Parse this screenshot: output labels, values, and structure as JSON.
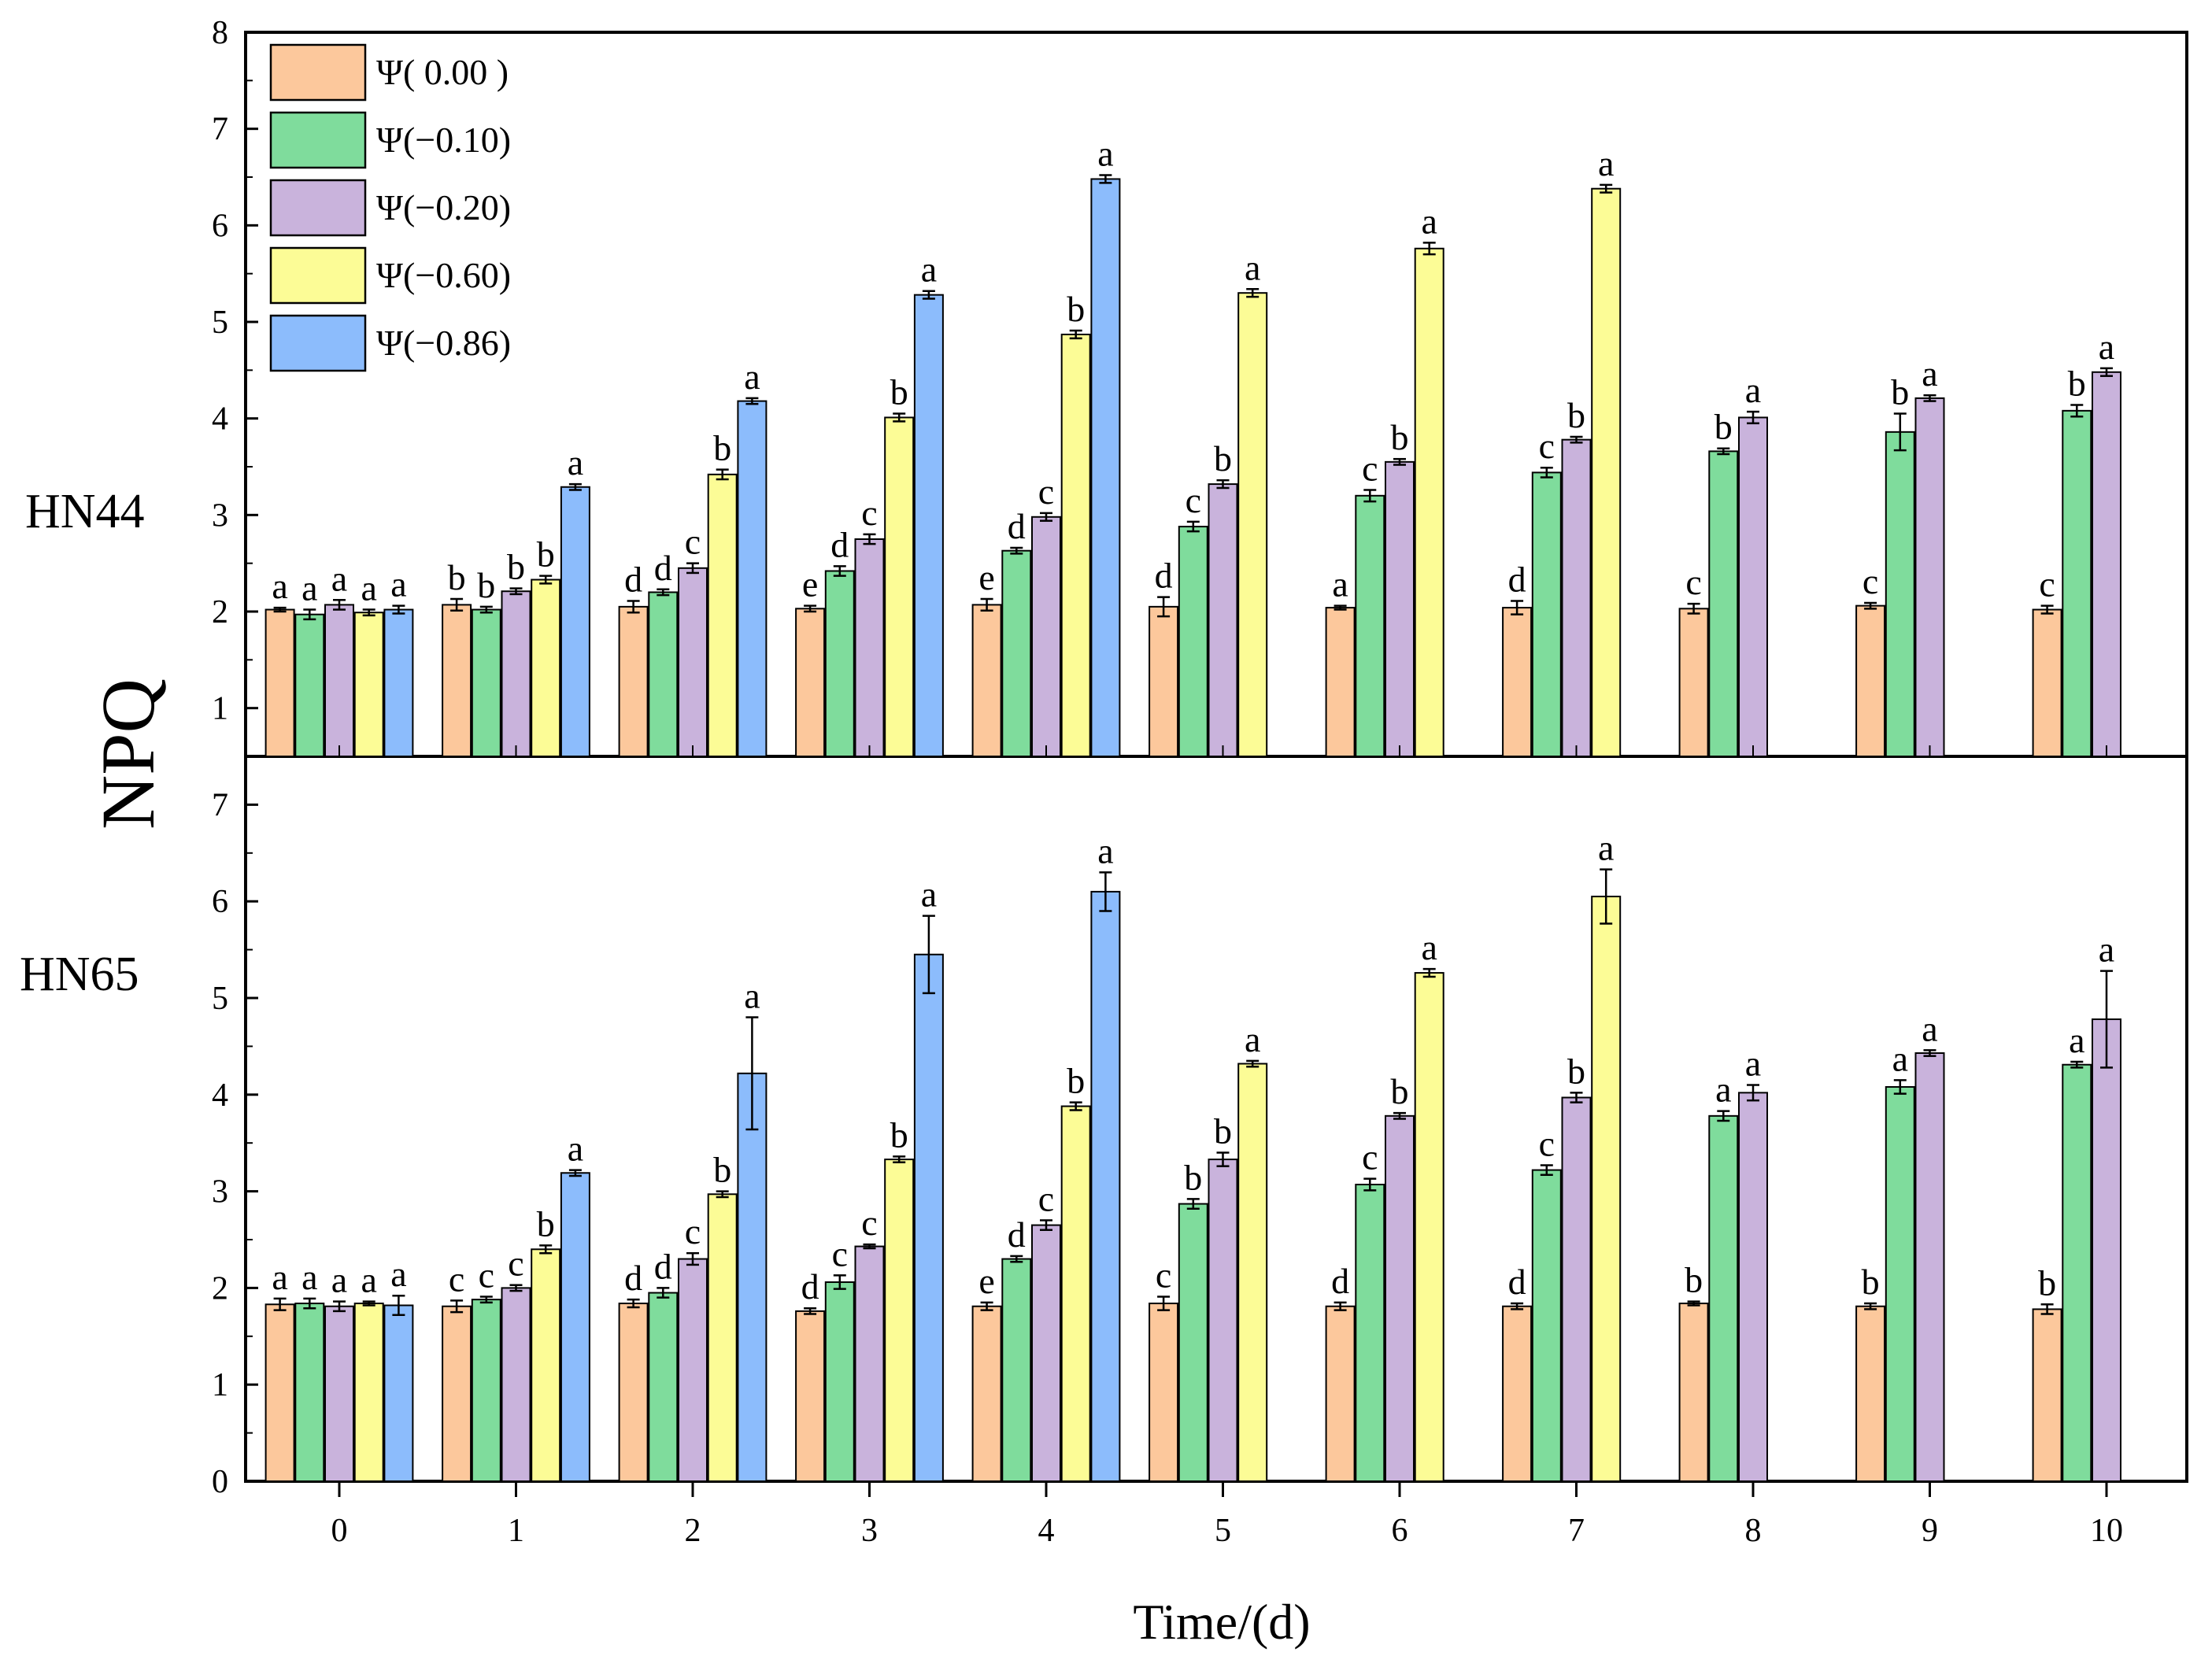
{
  "chart_data": {
    "type": "bar",
    "ylabel": "NPQ",
    "xlabel": "Time/(d)",
    "categories": [
      "0",
      "1",
      "2",
      "3",
      "4",
      "5",
      "6",
      "7",
      "8",
      "9",
      "10"
    ],
    "series_colors": [
      "#FCC89C",
      "#7FDC9C",
      "#C9B3DC",
      "#FCFC96",
      "#8CBCFC"
    ],
    "legend": [
      "Ψ( 0.00 )",
      "Ψ(−0.10)",
      "Ψ(−0.20)",
      "Ψ(−0.60)",
      "Ψ(−0.86)"
    ],
    "panels": [
      {
        "name": "HN44",
        "ylim": [
          0.5,
          8
        ],
        "yticks": [
          1,
          2,
          3,
          4,
          5,
          6,
          7,
          8
        ],
        "series": [
          {
            "name": "Ψ( 0.00 )",
            "values": [
              2.02,
              2.07,
              2.05,
              2.03,
              2.07,
              2.05,
              2.04,
              2.04,
              2.03,
              2.06,
              2.02
            ],
            "errors": [
              0.02,
              0.06,
              0.06,
              0.03,
              0.06,
              0.1,
              0.02,
              0.07,
              0.05,
              0.03,
              0.04
            ],
            "labels": [
              "a",
              "b",
              "d",
              "e",
              "e",
              "d",
              "a",
              "d",
              "c",
              "c",
              "c"
            ]
          },
          {
            "name": "Ψ(−0.10)",
            "values": [
              1.97,
              2.02,
              2.2,
              2.42,
              2.63,
              2.88,
              3.2,
              3.44,
              3.66,
              3.86,
              4.08
            ],
            "errors": [
              0.05,
              0.03,
              0.03,
              0.05,
              0.03,
              0.05,
              0.06,
              0.05,
              0.03,
              0.19,
              0.06
            ],
            "labels": [
              "a",
              "b",
              "d",
              "d",
              "d",
              "c",
              "c",
              "c",
              "b",
              "b",
              "b"
            ]
          },
          {
            "name": "Ψ(−0.20)",
            "values": [
              2.07,
              2.21,
              2.45,
              2.75,
              2.98,
              3.32,
              3.55,
              3.78,
              4.01,
              4.21,
              4.48
            ],
            "errors": [
              0.05,
              0.03,
              0.05,
              0.05,
              0.04,
              0.04,
              0.03,
              0.03,
              0.06,
              0.03,
              0.04
            ],
            "labels": [
              "a",
              "b",
              "c",
              "c",
              "c",
              "b",
              "b",
              "b",
              "a",
              "a",
              "a"
            ]
          },
          {
            "name": "Ψ(−0.60)",
            "values": [
              1.99,
              2.33,
              3.42,
              4.01,
              4.87,
              5.3,
              5.76,
              6.38,
              null,
              null,
              null
            ],
            "errors": [
              0.03,
              0.04,
              0.05,
              0.04,
              0.04,
              0.04,
              0.06,
              0.04,
              null,
              null,
              null
            ],
            "labels": [
              "a",
              "b",
              "b",
              "b",
              "b",
              "a",
              "a",
              "a",
              "",
              "",
              ""
            ]
          },
          {
            "name": "Ψ(−0.86)",
            "values": [
              2.02,
              3.29,
              4.18,
              5.28,
              6.48,
              null,
              null,
              null,
              null,
              null,
              null
            ],
            "errors": [
              0.04,
              0.03,
              0.03,
              0.04,
              0.04,
              null,
              null,
              null,
              null,
              null,
              null
            ],
            "labels": [
              "a",
              "a",
              "a",
              "a",
              "a",
              "",
              "",
              "",
              "",
              "",
              ""
            ]
          }
        ]
      },
      {
        "name": "HN65",
        "ylim": [
          0,
          7.5
        ],
        "yticks": [
          0,
          1,
          2,
          3,
          4,
          5,
          6,
          7
        ],
        "series": [
          {
            "name": "Ψ( 0.00 )",
            "values": [
              1.83,
              1.81,
              1.84,
              1.76,
              1.81,
              1.84,
              1.81,
              1.81,
              1.84,
              1.81,
              1.78
            ],
            "errors": [
              0.06,
              0.06,
              0.04,
              0.03,
              0.04,
              0.07,
              0.04,
              0.03,
              0.02,
              0.03,
              0.05
            ],
            "labels": [
              "a",
              "c",
              "d",
              "d",
              "e",
              "c",
              "d",
              "d",
              "b",
              "b",
              "b"
            ]
          },
          {
            "name": "Ψ(−0.10)",
            "values": [
              1.84,
              1.88,
              1.95,
              2.06,
              2.3,
              2.87,
              3.07,
              3.22,
              3.78,
              4.08,
              4.31
            ],
            "errors": [
              0.05,
              0.03,
              0.05,
              0.07,
              0.03,
              0.05,
              0.06,
              0.05,
              0.05,
              0.07,
              0.03
            ],
            "labels": [
              "a",
              "c",
              "d",
              "c",
              "d",
              "b",
              "c",
              "c",
              "a",
              "a",
              "a"
            ]
          },
          {
            "name": "Ψ(−0.20)",
            "values": [
              1.81,
              2.0,
              2.3,
              2.43,
              2.65,
              3.33,
              3.78,
              3.97,
              4.02,
              4.43,
              4.78
            ],
            "errors": [
              0.05,
              0.03,
              0.06,
              0.02,
              0.05,
              0.07,
              0.03,
              0.05,
              0.08,
              0.03,
              0.5
            ],
            "labels": [
              "a",
              "c",
              "c",
              "c",
              "c",
              "b",
              "b",
              "b",
              "a",
              "a",
              "a"
            ]
          },
          {
            "name": "Ψ(−0.60)",
            "values": [
              1.84,
              2.4,
              2.97,
              3.33,
              3.88,
              4.32,
              5.26,
              6.05,
              null,
              null,
              null
            ],
            "errors": [
              0.02,
              0.04,
              0.03,
              0.03,
              0.04,
              0.03,
              0.04,
              0.28,
              null,
              null,
              null
            ],
            "labels": [
              "a",
              "b",
              "b",
              "b",
              "b",
              "a",
              "a",
              "a",
              "",
              "",
              ""
            ]
          },
          {
            "name": "Ψ(−0.86)",
            "values": [
              1.82,
              3.19,
              4.22,
              5.45,
              6.1,
              null,
              null,
              null,
              null,
              null,
              null
            ],
            "errors": [
              0.1,
              0.03,
              0.58,
              0.4,
              0.2,
              null,
              null,
              null,
              null,
              null,
              null
            ],
            "labels": [
              "a",
              "a",
              "a",
              "a",
              "a",
              "",
              "",
              "",
              "",
              "",
              ""
            ]
          }
        ]
      }
    ]
  }
}
